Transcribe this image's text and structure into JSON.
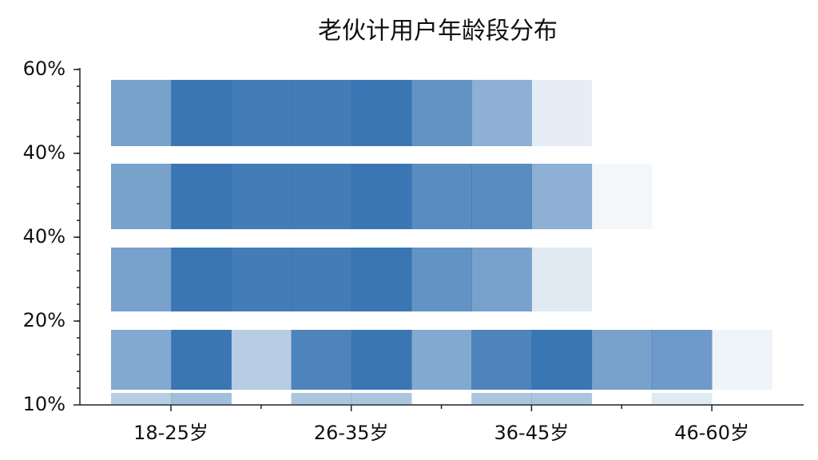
{
  "chart_data": {
    "type": "heatmap",
    "title": "老伙计用户年龄段分布",
    "categories": [
      "18-25岁",
      "26-35岁",
      "36-45岁",
      "46-60岁"
    ],
    "y_labels": [
      "60%",
      "40%",
      "40%",
      "20%",
      "10%"
    ],
    "color": "#2f6fb0",
    "z": [
      [
        0.65,
        0.95,
        0.9,
        0.9,
        0.95,
        0.75,
        0.55,
        0.12,
        0,
        0,
        0
      ],
      [
        0.65,
        0.95,
        0.9,
        0.9,
        0.95,
        0.8,
        0.8,
        0.55,
        0.06,
        0,
        0
      ],
      [
        0.65,
        0.95,
        0.9,
        0.9,
        0.95,
        0.75,
        0.65,
        0.15,
        0,
        0,
        0
      ],
      [
        0.6,
        0.95,
        0.35,
        0.85,
        0.95,
        0.6,
        0.85,
        0.95,
        0.65,
        0.7,
        0.08
      ],
      [
        0.35,
        0.45,
        0,
        0.4,
        0.4,
        0,
        0.4,
        0.4,
        0,
        0.15,
        0
      ]
    ]
  }
}
